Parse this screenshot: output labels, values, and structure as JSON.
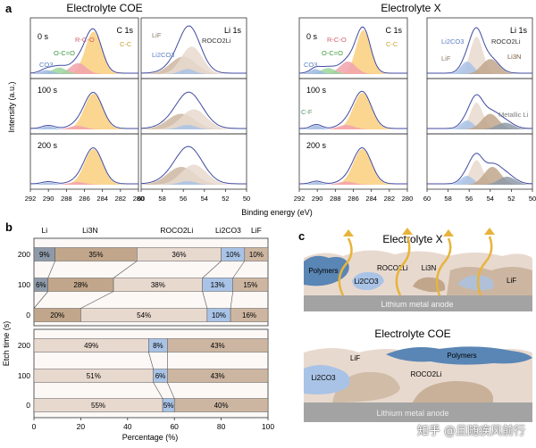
{
  "figure": {
    "panel_a": {
      "letter": "a",
      "group_titles": [
        "Electrolyte COE",
        "Electrolyte X"
      ],
      "spectra_titles": [
        "C 1s",
        "Li 1s",
        "C 1s",
        "Li 1s"
      ],
      "time_labels": [
        "0 s",
        "100 s",
        "200 s"
      ],
      "y_label": "Intensity (a.u.)",
      "x_label": "Binding energy (eV)",
      "c1s_ticks": [
        "292",
        "290",
        "288",
        "286",
        "284",
        "282",
        "280"
      ],
      "li1s_ticks": [
        "60",
        "58",
        "56",
        "54",
        "52",
        "50"
      ],
      "c1s_peak_labels": {
        "CC": "C-C",
        "RCO": "R-C-O",
        "OCO": "O-C=O",
        "CO3": "CO3"
      },
      "li1s_peak_labels": {
        "LiF": "LiF",
        "ROCO2Li": "ROCO2Li",
        "Li2CO3": "Li2CO3",
        "Li3N": "Li3N",
        "metal": "Metallic Li"
      },
      "cf_label": "C-F"
    },
    "panel_b": {
      "letter": "b",
      "x_label": "Percentage (%)",
      "y_label": "Etch time (s)",
      "x_ticks": [
        "0",
        "20",
        "40",
        "60",
        "80",
        "100"
      ],
      "top_headers": [
        "Li",
        "Li3N",
        "ROCO2Li",
        "Li2CO3",
        "LiF"
      ]
    },
    "panel_c": {
      "letter": "c",
      "top_title": "Electrolyte X",
      "bottom_title": "Electrolyte COE",
      "top_labels": {
        "polymers": "Polymers",
        "roco2li": "ROCO2Li",
        "li3n": "Li3N",
        "li2co3": "Li2CO3",
        "lif": "LiF"
      },
      "bottom_labels": {
        "polymers": "Polymers",
        "roco2li": "ROCO2Li",
        "li2co3": "Li2CO3",
        "lif": "LiF"
      },
      "anode_label": "Lithium metal anode"
    },
    "watermark": "知乎 @且随疾风前行"
  },
  "chart_data": [
    {
      "type": "bar",
      "title": "Electrolyte X",
      "categories": [
        "200",
        "100",
        "0"
      ],
      "series": [
        {
          "name": "Li",
          "values": [
            9,
            6,
            0
          ]
        },
        {
          "name": "Li3N",
          "values": [
            35,
            28,
            20
          ]
        },
        {
          "name": "ROCO2Li",
          "values": [
            36,
            38,
            54
          ]
        },
        {
          "name": "Li2CO3",
          "values": [
            10,
            13,
            10
          ]
        },
        {
          "name": "LiF",
          "values": [
            10,
            15,
            16
          ]
        }
      ],
      "xlabel": "Percentage (%)",
      "ylabel": "Etch time (s)",
      "xlim": [
        0,
        100
      ]
    },
    {
      "type": "bar",
      "title": "Electrolyte COE",
      "categories": [
        "200",
        "100",
        "0"
      ],
      "series": [
        {
          "name": "ROCO2Li",
          "values": [
            49,
            51,
            55
          ]
        },
        {
          "name": "Li2CO3",
          "values": [
            8,
            6,
            5
          ]
        },
        {
          "name": "LiF",
          "values": [
            43,
            43,
            40
          ]
        }
      ],
      "xlabel": "Percentage (%)",
      "ylabel": "Etch time (s)",
      "xlim": [
        0,
        100
      ]
    }
  ],
  "colors": {
    "li": "#8e9aa8",
    "li3n": "#c1a68b",
    "roco2li": "#e8d9cf",
    "li2co3": "#a9c3e6",
    "lif": "#cdb6a1",
    "cc": "#f9cf7e",
    "rco": "#f2a2ad",
    "oco": "#9bd69b",
    "co3": "#9fb8e1",
    "fit": "#404a9f",
    "polymer": "#5a86b5",
    "anode": "#a3a3a3",
    "arrow": "#e7b43b"
  }
}
